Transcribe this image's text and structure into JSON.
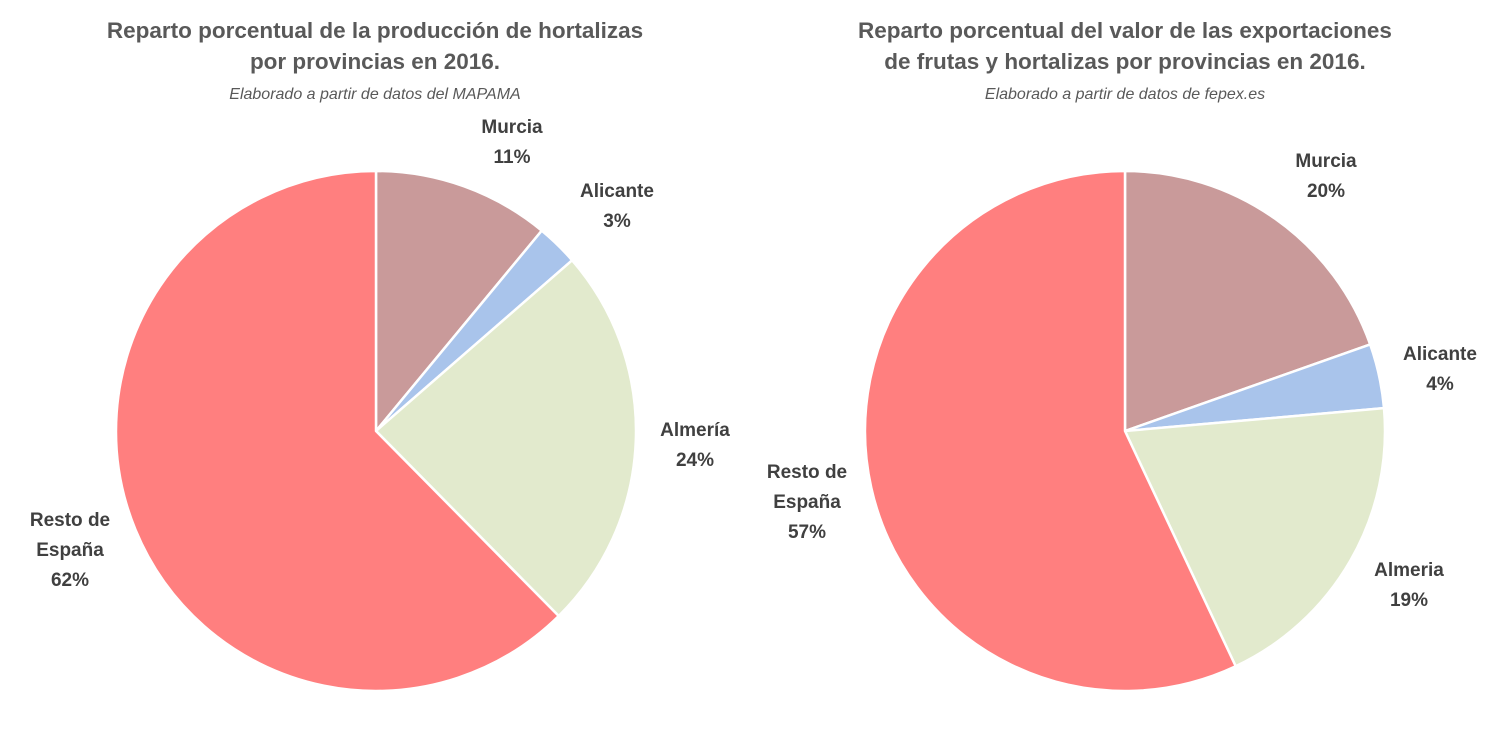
{
  "chart_data": [
    {
      "type": "pie",
      "title_lines": [
        "Reparto porcentual de la producción de hortalizas",
        "por provincias en 2016."
      ],
      "subtitle": "Elaborado a partir de datos del MAPAMA",
      "slices": [
        {
          "name_lines": [
            "Murcia"
          ],
          "percent_label": "11%",
          "value": 11,
          "color": "#C99A9A"
        },
        {
          "name_lines": [
            "Alicante"
          ],
          "percent_label": "3%",
          "value": 2.6,
          "color": "#A9C4EB"
        },
        {
          "name_lines": [
            "Almería"
          ],
          "percent_label": "24%",
          "value": 24,
          "color": "#E2EACD"
        },
        {
          "name_lines": [
            "Resto de",
            "España"
          ],
          "percent_label": "62%",
          "value": 62.4,
          "color": "#FF7F7F"
        }
      ]
    },
    {
      "type": "pie",
      "title_lines": [
        "Reparto porcentual del valor de las exportaciones",
        "de frutas y hortalizas por provincias en 2016."
      ],
      "subtitle": "Elaborado a partir de datos de fepex.es",
      "slices": [
        {
          "name_lines": [
            "Murcia"
          ],
          "percent_label": "20%",
          "value": 19.6,
          "color": "#C99A9A"
        },
        {
          "name_lines": [
            "Alicante"
          ],
          "percent_label": "4%",
          "value": 4,
          "color": "#A9C4EB"
        },
        {
          "name_lines": [
            "Almeria"
          ],
          "percent_label": "19%",
          "value": 19.4,
          "color": "#E2EACD"
        },
        {
          "name_lines": [
            "Resto de",
            "España"
          ],
          "percent_label": "57%",
          "value": 57,
          "color": "#FF7F7F"
        }
      ]
    }
  ]
}
